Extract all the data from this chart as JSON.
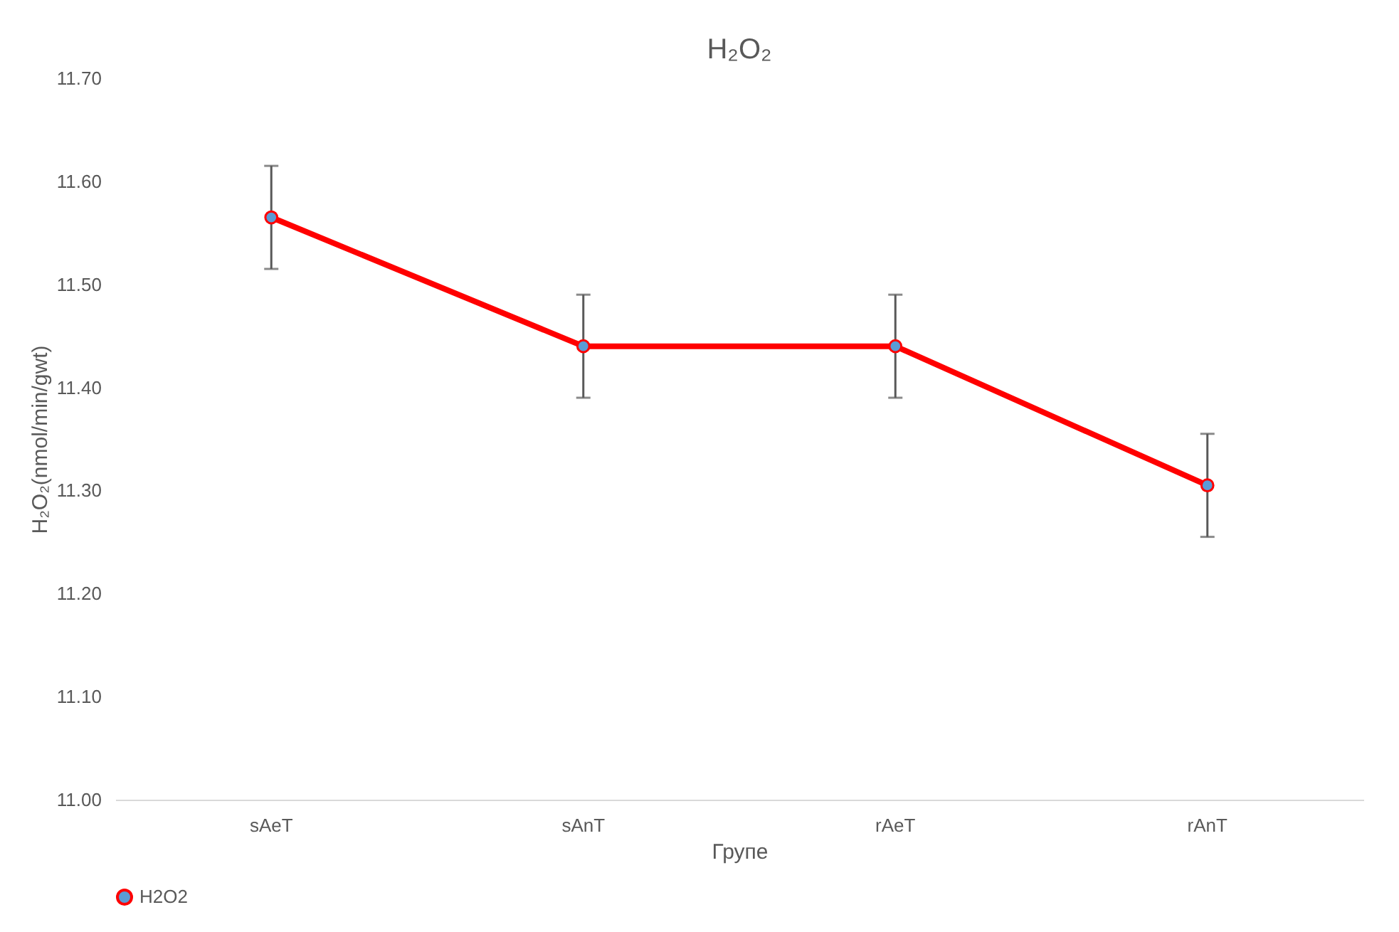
{
  "chart_data": {
    "type": "line",
    "title": "H₂O₂",
    "xlabel": "Групе",
    "ylabel": "H₂O₂(nmol/min/gwt)",
    "categories": [
      "sAeT",
      "sAnT",
      "rAeT",
      "rAnT"
    ],
    "series": [
      {
        "name": "H2O2",
        "color": "#ff0000",
        "values": [
          11.565,
          11.44,
          11.44,
          11.305
        ],
        "errors": [
          0.05,
          0.05,
          0.05,
          0.05
        ]
      }
    ],
    "ylim": [
      11.0,
      11.7
    ],
    "yticks": [
      {
        "value": 11.0,
        "label": "11.00"
      },
      {
        "value": 11.1,
        "label": "11.10"
      },
      {
        "value": 11.2,
        "label": "11.20"
      },
      {
        "value": 11.3,
        "label": "11.30"
      },
      {
        "value": 11.4,
        "label": "11.40"
      },
      {
        "value": 11.5,
        "label": "11.50"
      },
      {
        "value": 11.6,
        "label": "11.60"
      },
      {
        "value": 11.7,
        "label": "11.70"
      }
    ],
    "grid": false,
    "legend": "bottom",
    "marker": "circle",
    "line_style": "solid"
  }
}
